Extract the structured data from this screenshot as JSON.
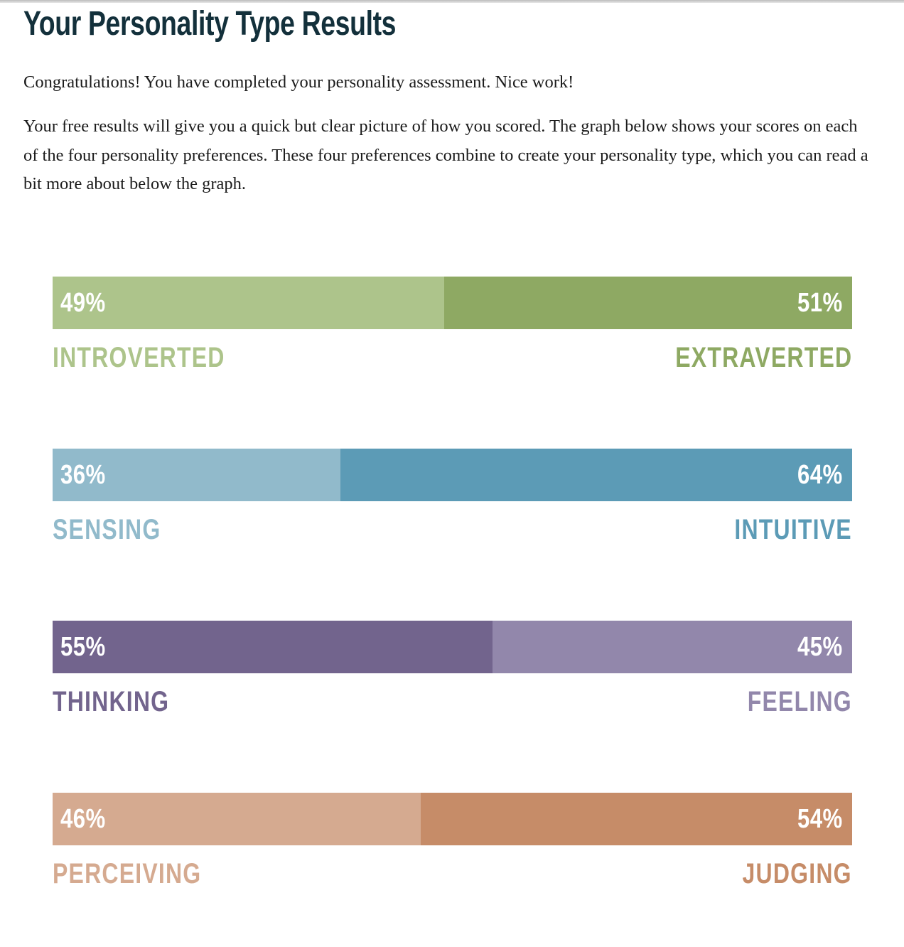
{
  "page": {
    "title": "Your Personality Type Results",
    "intro": "Congratulations! You have completed your personality assessment. Nice work!",
    "description": "Your free results will give you a quick but clear picture of how you scored. The graph below shows your scores on each of the four personality preferences. These four preferences combine to create your personality type, which you can read a bit more about below the graph."
  },
  "scales": [
    {
      "left": {
        "label": "INTROVERTED",
        "percent": 49,
        "percent_text": "49%",
        "color": "#adc48b"
      },
      "right": {
        "label": "EXTRAVERTED",
        "percent": 51,
        "percent_text": "51%",
        "color": "#8ea963"
      }
    },
    {
      "left": {
        "label": "SENSING",
        "percent": 36,
        "percent_text": "36%",
        "color": "#91bacb"
      },
      "right": {
        "label": "INTUITIVE",
        "percent": 64,
        "percent_text": "64%",
        "color": "#5c9bb6"
      }
    },
    {
      "left": {
        "label": "THINKING",
        "percent": 55,
        "percent_text": "55%",
        "color": "#72648d"
      },
      "right": {
        "label": "FEELING",
        "percent": 45,
        "percent_text": "45%",
        "color": "#9287ab"
      }
    },
    {
      "left": {
        "label": "PERCEIVING",
        "percent": 46,
        "percent_text": "46%",
        "color": "#d5aa90"
      },
      "right": {
        "label": "JUDGING",
        "percent": 54,
        "percent_text": "54%",
        "color": "#c68c68"
      }
    }
  ]
}
